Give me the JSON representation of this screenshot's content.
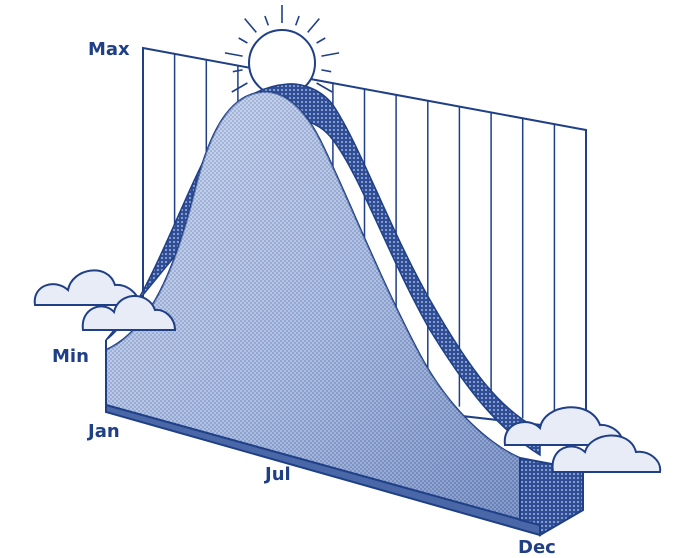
{
  "labels": {
    "max": "Max",
    "min": "Min",
    "jan": "Jan",
    "jul": "Jul",
    "dec": "Dec"
  },
  "colors": {
    "ink": "#1f3f86",
    "front_face": "#4a67a8",
    "curve_light": "#c7d3eb",
    "curve_mid": "#8ea4d2",
    "curve_dark": "#3f5ea3",
    "cloud_fill": "#e7ecf6",
    "sun_fill": "#ffffff",
    "background": "#ffffff"
  },
  "icons": {
    "sun": "sun-icon",
    "cloud_left": "cloud-icon",
    "cloud_right": "cloud-icon"
  }
}
